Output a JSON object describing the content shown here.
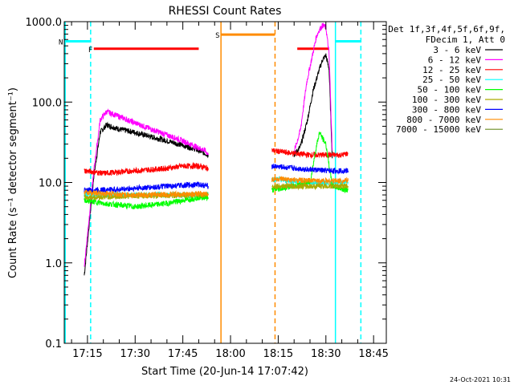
{
  "chart_data": {
    "type": "line",
    "title": "RHESSI Count Rates",
    "xlabel": "Start Time (20-Jun-14 17:07:42)",
    "ylabel": "Count Rate (s⁻¹ detector segment⁻¹)",
    "yscale": "log",
    "ylim": [
      0.1,
      1000
    ],
    "xlim": [
      "17:07:42",
      "18:49:00"
    ],
    "x_ticks": [
      "17:15",
      "17:30",
      "17:45",
      "18:00",
      "18:15",
      "18:30",
      "18:45"
    ],
    "y_ticks": [
      "0.1",
      "1.0",
      "10.0",
      "100.0",
      "1000.0"
    ],
    "grid": false,
    "legend_position": "right",
    "legend_header": [
      "Det 1f,3f,4f,5f,6f,9f,",
      "FDecim 1, Att 0"
    ],
    "footer": "24-Oct-2021 10:31",
    "series": [
      {
        "name": "3 - 6 keV",
        "color": "#000000",
        "segments": [
          {
            "x": [
              "17:14",
              "17:17",
              "17:19",
              "17:21",
              "17:25",
              "17:30",
              "17:35",
              "17:40",
              "17:45",
              "17:49",
              "17:52",
              "17:53"
            ],
            "y": [
              0.7,
              12,
              42,
              52,
              46,
              42,
              37,
              33,
              29,
              26,
              23,
              22
            ]
          },
          {
            "x": [
              "18:20",
              "18:22",
              "18:24",
              "18:26",
              "18:28",
              "18:29",
              "18:30",
              "18:31",
              "18:32"
            ],
            "y": [
              22,
              28,
              55,
              140,
              260,
              340,
              380,
              260,
              20
            ]
          }
        ]
      },
      {
        "name": "6 - 12 keV",
        "color": "#ff00ff",
        "segments": [
          {
            "x": [
              "17:14",
              "17:17",
              "17:19",
              "17:21",
              "17:25",
              "17:30",
              "17:35",
              "17:40",
              "17:45",
              "17:49",
              "17:52",
              "17:53"
            ],
            "y": [
              0.9,
              14,
              60,
              76,
              66,
              55,
              46,
              39,
              33,
              28,
              25,
              22
            ]
          },
          {
            "x": [
              "18:20",
              "18:22",
              "18:24",
              "18:26",
              "18:27",
              "18:28",
              "18:29",
              "18:30",
              "18:31",
              "18:32"
            ],
            "y": [
              24,
              45,
              180,
              420,
              650,
              800,
              900,
              850,
              400,
              25
            ]
          }
        ]
      },
      {
        "name": "12 - 25 keV",
        "color": "#ff0000",
        "segments": [
          {
            "x": [
              "17:14",
              "17:20",
              "17:30",
              "17:40",
              "17:45",
              "17:50",
              "17:53"
            ],
            "y": [
              14,
              13,
              14,
              15,
              16,
              16,
              15
            ]
          },
          {
            "x": [
              "18:13",
              "18:20",
              "18:25",
              "18:30",
              "18:35",
              "18:37"
            ],
            "y": [
              25,
              23,
              22,
              22,
              22,
              23
            ]
          }
        ]
      },
      {
        "name": "25 - 50 keV",
        "color": "#00ffff",
        "segments": [
          {
            "x": [
              "17:14",
              "17:30",
              "17:45",
              "17:53"
            ],
            "y": [
              7,
              7,
              7,
              7
            ]
          },
          {
            "x": [
              "18:13",
              "18:25",
              "18:37"
            ],
            "y": [
              11,
              10,
              10
            ]
          }
        ]
      },
      {
        "name": "50 - 100 keV",
        "color": "#00ff00",
        "segments": [
          {
            "x": [
              "17:14",
              "17:20",
              "17:30",
              "17:40",
              "17:50",
              "17:53"
            ],
            "y": [
              6,
              5.5,
              5,
              5.5,
              6.5,
              6.5
            ]
          },
          {
            "x": [
              "18:13",
              "18:25",
              "18:27",
              "18:28",
              "18:29",
              "18:30",
              "18:32",
              "18:37"
            ],
            "y": [
              8,
              10,
              28,
              42,
              35,
              30,
              9,
              8
            ]
          }
        ]
      },
      {
        "name": "100 - 300 keV",
        "color": "#aaaa00",
        "segments": [
          {
            "x": [
              "17:14",
              "17:30",
              "17:53"
            ],
            "y": [
              6.5,
              6.8,
              7
            ]
          },
          {
            "x": [
              "18:13",
              "18:25",
              "18:37"
            ],
            "y": [
              9,
              9,
              9
            ]
          }
        ]
      },
      {
        "name": "300 - 800 keV",
        "color": "#0000ff",
        "segments": [
          {
            "x": [
              "17:14",
              "17:25",
              "17:35",
              "17:45",
              "17:50",
              "17:53"
            ],
            "y": [
              8,
              8.2,
              8.7,
              9.2,
              9.5,
              9
            ]
          },
          {
            "x": [
              "18:13",
              "18:20",
              "18:25",
              "18:30",
              "18:37"
            ],
            "y": [
              16,
              15,
              14.5,
              14,
              14
            ]
          }
        ]
      },
      {
        "name": "800 - 7000 keV",
        "color": "#ff8c00",
        "segments": [
          {
            "x": [
              "17:14",
              "17:30",
              "17:53"
            ],
            "y": [
              7.5,
              7,
              7.2
            ]
          },
          {
            "x": [
              "18:13",
              "18:25",
              "18:37"
            ],
            "y": [
              11,
              10.5,
              10.5
            ]
          }
        ]
      },
      {
        "name": "7000 - 15000 keV",
        "color": "#6b8e23",
        "segments": []
      }
    ],
    "annotations": [
      {
        "label": "N",
        "color": "#00ffff",
        "bars": [
          [
            "17:07:42",
            "17:16"
          ],
          [
            "18:33",
            "18:41"
          ]
        ],
        "y": 570
      },
      {
        "label": "F",
        "color": "#ff0000",
        "bars": [
          [
            "17:17",
            "17:50"
          ],
          [
            "18:21",
            "18:31"
          ]
        ],
        "y": 460
      },
      {
        "label": "S",
        "color": "#ff8c00",
        "bars": [
          [
            "17:57",
            "18:14"
          ]
        ],
        "y": 690
      }
    ],
    "vertical_lines": [
      {
        "x": "17:08",
        "color": "#00ffff",
        "style": "solid"
      },
      {
        "x": "17:16",
        "color": "#00ffff",
        "style": "dashed"
      },
      {
        "x": "17:57",
        "color": "#ff8c00",
        "style": "solid"
      },
      {
        "x": "18:14",
        "color": "#ff8c00",
        "style": "dashed"
      },
      {
        "x": "18:33",
        "color": "#00ffff",
        "style": "solid"
      },
      {
        "x": "18:41",
        "color": "#00ffff",
        "style": "dashed"
      }
    ]
  }
}
